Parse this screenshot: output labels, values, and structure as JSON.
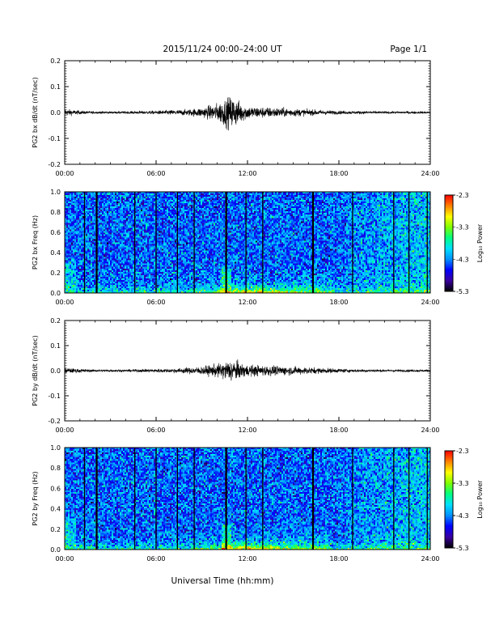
{
  "header": {
    "title": "2015/11/24  00:00–24:00 UT",
    "page": "Page 1/1"
  },
  "footer": {
    "xlabel": "Universal Time (hh:mm)"
  },
  "colors": {
    "trace": "#000000",
    "colormap": [
      "#000000",
      "#3a00a0",
      "#0000ff",
      "#0090ff",
      "#00e0ff",
      "#00ff80",
      "#80ff00",
      "#ffff00",
      "#ff8000",
      "#ff0000"
    ]
  },
  "chart_data": [
    {
      "type": "line",
      "ylabel": "PG2 bx dB/dt (nT/sec)",
      "xlim": [
        0,
        24
      ],
      "ylim": [
        -0.2,
        0.2
      ],
      "xticks": [
        "00:00",
        "06:00",
        "12:00",
        "18:00",
        "24:00"
      ],
      "yticks": [
        "0.2",
        "0.1",
        "0.0",
        "-0.1",
        "-0.2"
      ],
      "series": [
        {
          "x_hours": [
            0,
            1,
            2,
            3,
            4,
            5,
            6,
            7,
            8,
            9,
            10,
            10.5,
            11,
            11.5,
            12,
            13,
            14,
            15,
            16,
            17,
            18,
            19,
            20,
            21,
            22,
            23,
            24
          ],
          "envelope": [
            0.012,
            0.006,
            0.004,
            0.004,
            0.004,
            0.005,
            0.006,
            0.008,
            0.01,
            0.016,
            0.03,
            0.045,
            0.055,
            0.035,
            0.022,
            0.018,
            0.016,
            0.013,
            0.01,
            0.008,
            0.006,
            0.005,
            0.005,
            0.004,
            0.004,
            0.004,
            0.004
          ]
        }
      ]
    },
    {
      "type": "heatmap",
      "ylabel": "PG2 bx Freq (Hz)",
      "xlim": [
        0,
        24
      ],
      "ylim": [
        0,
        1.0
      ],
      "xticks": [
        "00:00",
        "06:00",
        "12:00",
        "18:00",
        "24:00"
      ],
      "yticks": [
        "1.0",
        "0.8",
        "0.6",
        "0.4",
        "0.2",
        "0.0"
      ],
      "colorbar": {
        "label": "Log₁₀ Power",
        "ticks": [
          "-2.3",
          "-3.3",
          "-4.3",
          "-5.3"
        ],
        "range": [
          -5.3,
          -2.3
        ]
      },
      "gap_hours": [
        1.3,
        2.1,
        4.6,
        6.0,
        7.4,
        8.5,
        10.6,
        11.9,
        13.0,
        16.3,
        18.9,
        21.6,
        22.6,
        23.8
      ]
    },
    {
      "type": "line",
      "ylabel": "PG2 by dB/dt (nT/sec)",
      "xlim": [
        0,
        24
      ],
      "ylim": [
        -0.2,
        0.2
      ],
      "xticks": [
        "00:00",
        "06:00",
        "12:00",
        "18:00",
        "24:00"
      ],
      "yticks": [
        "0.2",
        "0.1",
        "0.0",
        "-0.1",
        "-0.2"
      ],
      "series": [
        {
          "x_hours": [
            0,
            1,
            2,
            3,
            4,
            5,
            6,
            7,
            8,
            9,
            10,
            10.5,
            11,
            11.5,
            12,
            13,
            14,
            15,
            16,
            17,
            18,
            19,
            20,
            21,
            22,
            23,
            24
          ],
          "envelope": [
            0.01,
            0.006,
            0.004,
            0.004,
            0.004,
            0.005,
            0.006,
            0.007,
            0.01,
            0.014,
            0.022,
            0.03,
            0.04,
            0.026,
            0.02,
            0.018,
            0.016,
            0.014,
            0.012,
            0.009,
            0.007,
            0.005,
            0.005,
            0.004,
            0.004,
            0.004,
            0.004
          ]
        }
      ]
    },
    {
      "type": "heatmap",
      "ylabel": "PG2 by Freq (Hz)",
      "xlim": [
        0,
        24
      ],
      "ylim": [
        0,
        1.0
      ],
      "xticks": [
        "00:00",
        "06:00",
        "12:00",
        "18:00",
        "24:00"
      ],
      "yticks": [
        "1.0",
        "0.8",
        "0.6",
        "0.4",
        "0.2",
        "0.0"
      ],
      "colorbar": {
        "label": "Log₁₀ Power",
        "ticks": [
          "-2.3",
          "-3.3",
          "-4.3",
          "-5.3"
        ],
        "range": [
          -5.3,
          -2.3
        ]
      },
      "gap_hours": [
        1.3,
        2.1,
        4.6,
        6.0,
        7.4,
        8.5,
        10.6,
        11.9,
        13.0,
        16.3,
        18.9,
        21.6,
        22.6,
        23.8
      ]
    }
  ]
}
